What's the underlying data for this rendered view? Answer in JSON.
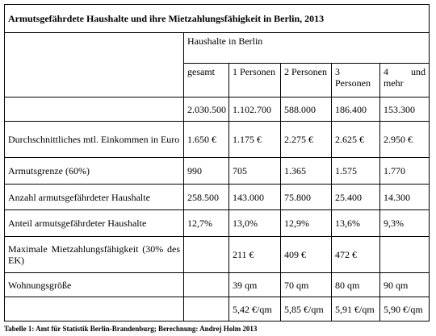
{
  "title": "Armutsgefährdete Haushalte und ihre Mietzahlungsfähigkeit in Berlin, 2013",
  "table": {
    "group_header": "Haushalte in Berlin",
    "columns": [
      "gesamt",
      "1 Personen",
      "2 Personen",
      "3 Personen",
      "4 und mehr"
    ],
    "rows": [
      [
        null,
        "2.030.500",
        "1.102.700",
        "588.000",
        "186.400",
        "153.300"
      ],
      [
        "Durchschnittliches mtl. Einkommen in Euro",
        "1.650 €",
        "1.175 €",
        "2.275 €",
        "2.625 €",
        "2.950 €"
      ],
      [
        "Armutsgrenze (60%)",
        "990",
        "705",
        "1.365",
        "1.575",
        "1.770"
      ],
      [
        "Anzahl armutsgefährdeter Haushalte",
        "258.500",
        "143.000",
        "75.800",
        "25.400",
        "14.300"
      ],
      [
        "Anteil armutsgefährdeter Haushalte",
        "12,7%",
        "13,0%",
        "12,9%",
        "13,6%",
        "9,3%"
      ],
      [
        "Maximale Mietzahlungsfähigkeit (30% des EK)",
        null,
        "211 €",
        "409 €",
        "472 €",
        null
      ],
      [
        "Wohnungsgröße",
        null,
        "39 qm",
        "70 qm",
        "80 qm",
        "90 qm"
      ],
      [
        null,
        null,
        "5,42 €/qm",
        "5,85 €/qm",
        "5,91 €/qm",
        "5,90 €/qm"
      ]
    ]
  },
  "caption": "Tabelle 1: Amt für Statistik Berlin-Brandenburg; Berechnung: Andrej Holm 2013"
}
